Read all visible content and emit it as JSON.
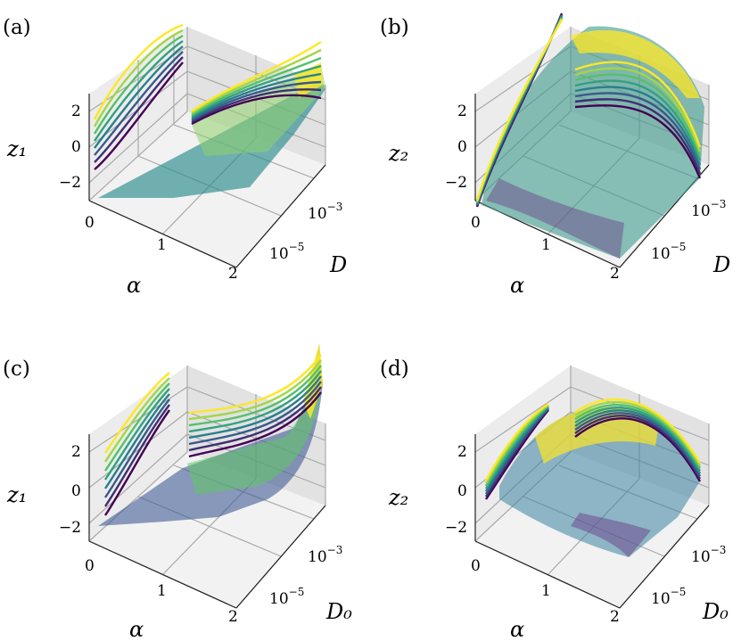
{
  "figure": {
    "colors": {
      "pane_left": "#ececec",
      "pane_right": "#e2e2e2",
      "pane_floor": "#f2f2f2",
      "grid": "#a9a9a9",
      "text": "#000000",
      "colormap": [
        "#440154",
        "#3b528b",
        "#21918c",
        "#5ec962",
        "#fde725"
      ]
    }
  },
  "chart_data": [
    {
      "type": "surface3d",
      "panel_label": "(a)",
      "xlabel": "α",
      "ylabel": "D",
      "zlabel": "z₁",
      "x_ticks": [
        "0",
        "1",
        "2"
      ],
      "y_ticks": [
        "10",
        "10"
      ],
      "y_tick_exponents": [
        "−5",
        "−3"
      ],
      "z_ticks": [
        "2",
        "0",
        "−2"
      ],
      "xlim": [
        0,
        2
      ],
      "ylim_log10": [
        -6,
        -2
      ],
      "zlim": [
        -3,
        3
      ],
      "surface": "rising ramp from α=0 to α=2, roughly constant in D",
      "curve_series_count": 8,
      "curves": {
        "left_wall_alpha0": [
          [
            -1.3,
            0.3
          ],
          [
            -1.1,
            0.6
          ],
          [
            -0.9,
            0.9
          ],
          [
            -0.6,
            1.2
          ],
          [
            -0.3,
            1.5
          ],
          [
            0.0,
            1.8
          ],
          [
            0.3,
            2.1
          ],
          [
            0.6,
            2.4
          ]
        ],
        "back_wall_D_max": [
          [
            -1.0,
            2.7
          ],
          [
            -0.6,
            2.6
          ],
          [
            -0.3,
            2.5
          ],
          [
            0.0,
            2.5
          ],
          [
            0.2,
            2.4
          ],
          [
            0.5,
            2.4
          ],
          [
            0.7,
            2.3
          ],
          [
            0.9,
            2.3
          ]
        ]
      }
    },
    {
      "type": "surface3d",
      "panel_label": "(b)",
      "xlabel": "α",
      "ylabel": "D",
      "zlabel": "z₂",
      "x_ticks": [
        "0",
        "1",
        "2"
      ],
      "y_ticks": [
        "10",
        "10"
      ],
      "y_tick_exponents": [
        "−5",
        "−3"
      ],
      "z_ticks": [
        "2",
        "0",
        "−2"
      ],
      "xlim": [
        0,
        2
      ],
      "ylim_log10": [
        -6,
        -2
      ],
      "zlim": [
        -3,
        3
      ],
      "surface": "dome peaking at large D, falling toward low D and α=2",
      "curve_series_count": 8,
      "curves": {
        "left_wall_alpha0": "all series collapse onto one rising curve from −3 to 4",
        "back_wall_D_max": "arched curves whose height grows with series index"
      }
    },
    {
      "type": "surface3d",
      "panel_label": "(c)",
      "xlabel": "α",
      "ylabel": "D₀",
      "zlabel": "z₁",
      "x_ticks": [
        "0",
        "1",
        "2"
      ],
      "y_ticks": [
        "10",
        "10"
      ],
      "y_tick_exponents": [
        "−5",
        "−3"
      ],
      "z_ticks": [
        "2",
        "0",
        "−2"
      ],
      "xlim": [
        0,
        2
      ],
      "ylim_log10": [
        -6,
        -2
      ],
      "zlim": [
        -3,
        3
      ],
      "surface": "ramp in α, bending sharply upward at large D₀",
      "curve_series_count": 8,
      "curves": {
        "left_wall_alpha0": "straight lines rising with D₀, offset by series",
        "back_wall_D_max": "flat then sharply rising toward α=2"
      }
    },
    {
      "type": "surface3d",
      "panel_label": "(d)",
      "xlabel": "α",
      "ylabel": "D₀",
      "zlabel": "z₂",
      "x_ticks": [
        "0",
        "1",
        "2"
      ],
      "y_ticks": [
        "10",
        "10"
      ],
      "y_tick_exponents": [
        "−5",
        "−3"
      ],
      "z_ticks": [
        "2",
        "0",
        "−2"
      ],
      "xlim": [
        0,
        2
      ],
      "ylim_log10": [
        -6,
        -2
      ],
      "zlim": [
        -3,
        3
      ],
      "surface": "noisy dome with maximum near α≈1, mid D₀",
      "curve_series_count": 8,
      "curves": {
        "left_wall_alpha0": "rising lines with spread by series",
        "back_wall_D_max": "noisy arches peaking mid-α"
      }
    }
  ]
}
